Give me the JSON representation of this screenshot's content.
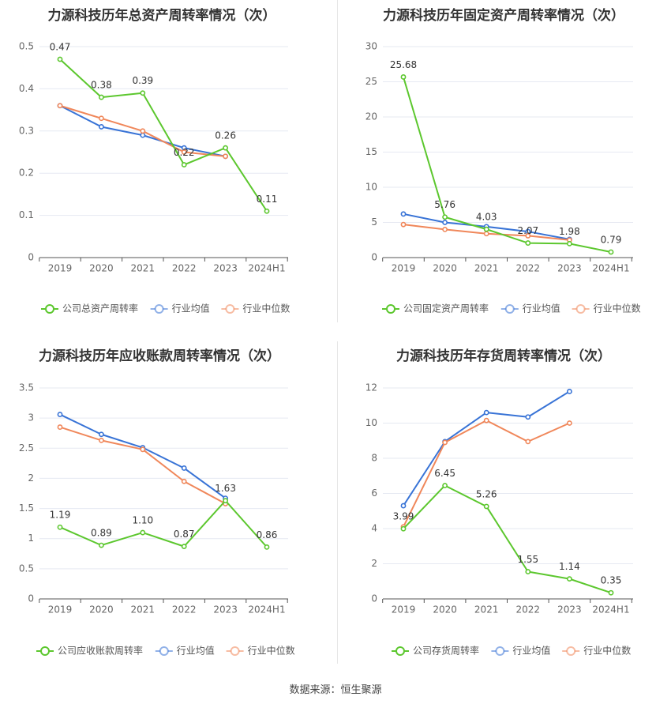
{
  "footer": {
    "source_label": "数据来源：",
    "source_name": "恒生聚源"
  },
  "colors": {
    "company": "#5cc72e",
    "avg": "#3873d6",
    "median": "#f0875a",
    "grid": "#e6e9f2",
    "axis": "#555555"
  },
  "chart_data": [
    {
      "type": "line",
      "title": "力源科技历年总资产周转率情况（次）",
      "categories": [
        "2019",
        "2020",
        "2021",
        "2022",
        "2023",
        "2024H1"
      ],
      "ylim": [
        0,
        0.5
      ],
      "yticks": [
        0,
        0.1,
        0.2,
        0.3,
        0.4,
        0.5
      ],
      "ytick_labels": [
        "0",
        "0.1",
        "0.2",
        "0.3",
        "0.4",
        "0.5"
      ],
      "series": [
        {
          "name": "公司总资产周转率",
          "role": "company",
          "values": [
            0.47,
            0.38,
            0.39,
            0.22,
            0.26,
            0.11
          ],
          "labels": [
            "0.47",
            "0.38",
            "0.39",
            "0.22",
            "0.26",
            "0.11"
          ]
        },
        {
          "name": "行业均值",
          "role": "avg",
          "values": [
            0.36,
            0.31,
            0.29,
            0.26,
            0.24,
            null
          ]
        },
        {
          "name": "行业中位数",
          "role": "median",
          "values": [
            0.36,
            0.33,
            0.3,
            0.25,
            0.24,
            null
          ]
        }
      ]
    },
    {
      "type": "line",
      "title": "力源科技历年固定资产周转率情况（次）",
      "categories": [
        "2019",
        "2020",
        "2021",
        "2022",
        "2023",
        "2024H1"
      ],
      "ylim": [
        0,
        30
      ],
      "yticks": [
        0,
        5,
        10,
        15,
        20,
        25,
        30
      ],
      "ytick_labels": [
        "0",
        "5",
        "10",
        "15",
        "20",
        "25",
        "30"
      ],
      "series": [
        {
          "name": "公司固定资产周转率",
          "role": "company",
          "values": [
            25.68,
            5.76,
            4.03,
            2.07,
            1.98,
            0.79
          ],
          "labels": [
            "25.68",
            "5.76",
            "4.03",
            "2.07",
            "1.98",
            "0.79"
          ]
        },
        {
          "name": "行业均值",
          "role": "avg",
          "values": [
            6.2,
            5.0,
            4.4,
            3.7,
            2.6,
            null
          ]
        },
        {
          "name": "行业中位数",
          "role": "median",
          "values": [
            4.7,
            4.0,
            3.4,
            3.1,
            2.5,
            null
          ]
        }
      ]
    },
    {
      "type": "line",
      "title": "力源科技历年应收账款周转率情况（次）",
      "categories": [
        "2019",
        "2020",
        "2021",
        "2022",
        "2023",
        "2024H1"
      ],
      "ylim": [
        0,
        3.5
      ],
      "yticks": [
        0,
        0.5,
        1,
        1.5,
        2,
        2.5,
        3,
        3.5
      ],
      "ytick_labels": [
        "0",
        "0.5",
        "1",
        "1.5",
        "2",
        "2.5",
        "3",
        "3.5"
      ],
      "series": [
        {
          "name": "公司应收账款周转率",
          "role": "company",
          "values": [
            1.19,
            0.89,
            1.1,
            0.87,
            1.63,
            0.86
          ],
          "labels": [
            "1.19",
            "0.89",
            "1.10",
            "0.87",
            "1.63",
            "0.86"
          ]
        },
        {
          "name": "行业均值",
          "role": "avg",
          "values": [
            3.06,
            2.73,
            2.51,
            2.17,
            1.67,
            null
          ]
        },
        {
          "name": "行业中位数",
          "role": "median",
          "values": [
            2.85,
            2.63,
            2.48,
            1.95,
            1.58,
            null
          ]
        }
      ]
    },
    {
      "type": "line",
      "title": "力源科技历年存货周转率情况（次）",
      "categories": [
        "2019",
        "2020",
        "2021",
        "2022",
        "2023",
        "2024H1"
      ],
      "ylim": [
        0,
        12
      ],
      "yticks": [
        0,
        2,
        4,
        6,
        8,
        10,
        12
      ],
      "ytick_labels": [
        "0",
        "2",
        "4",
        "6",
        "8",
        "10",
        "12"
      ],
      "series": [
        {
          "name": "公司存货周转率",
          "role": "company",
          "values": [
            3.99,
            6.45,
            5.26,
            1.55,
            1.14,
            0.35
          ],
          "labels": [
            "3.99",
            "6.45",
            "5.26",
            "1.55",
            "1.14",
            "0.35"
          ]
        },
        {
          "name": "行业均值",
          "role": "avg",
          "values": [
            5.3,
            8.95,
            10.6,
            10.35,
            11.8,
            null
          ]
        },
        {
          "name": "行业中位数",
          "role": "median",
          "values": [
            4.1,
            8.9,
            10.15,
            8.95,
            10.0,
            null
          ]
        }
      ]
    }
  ]
}
